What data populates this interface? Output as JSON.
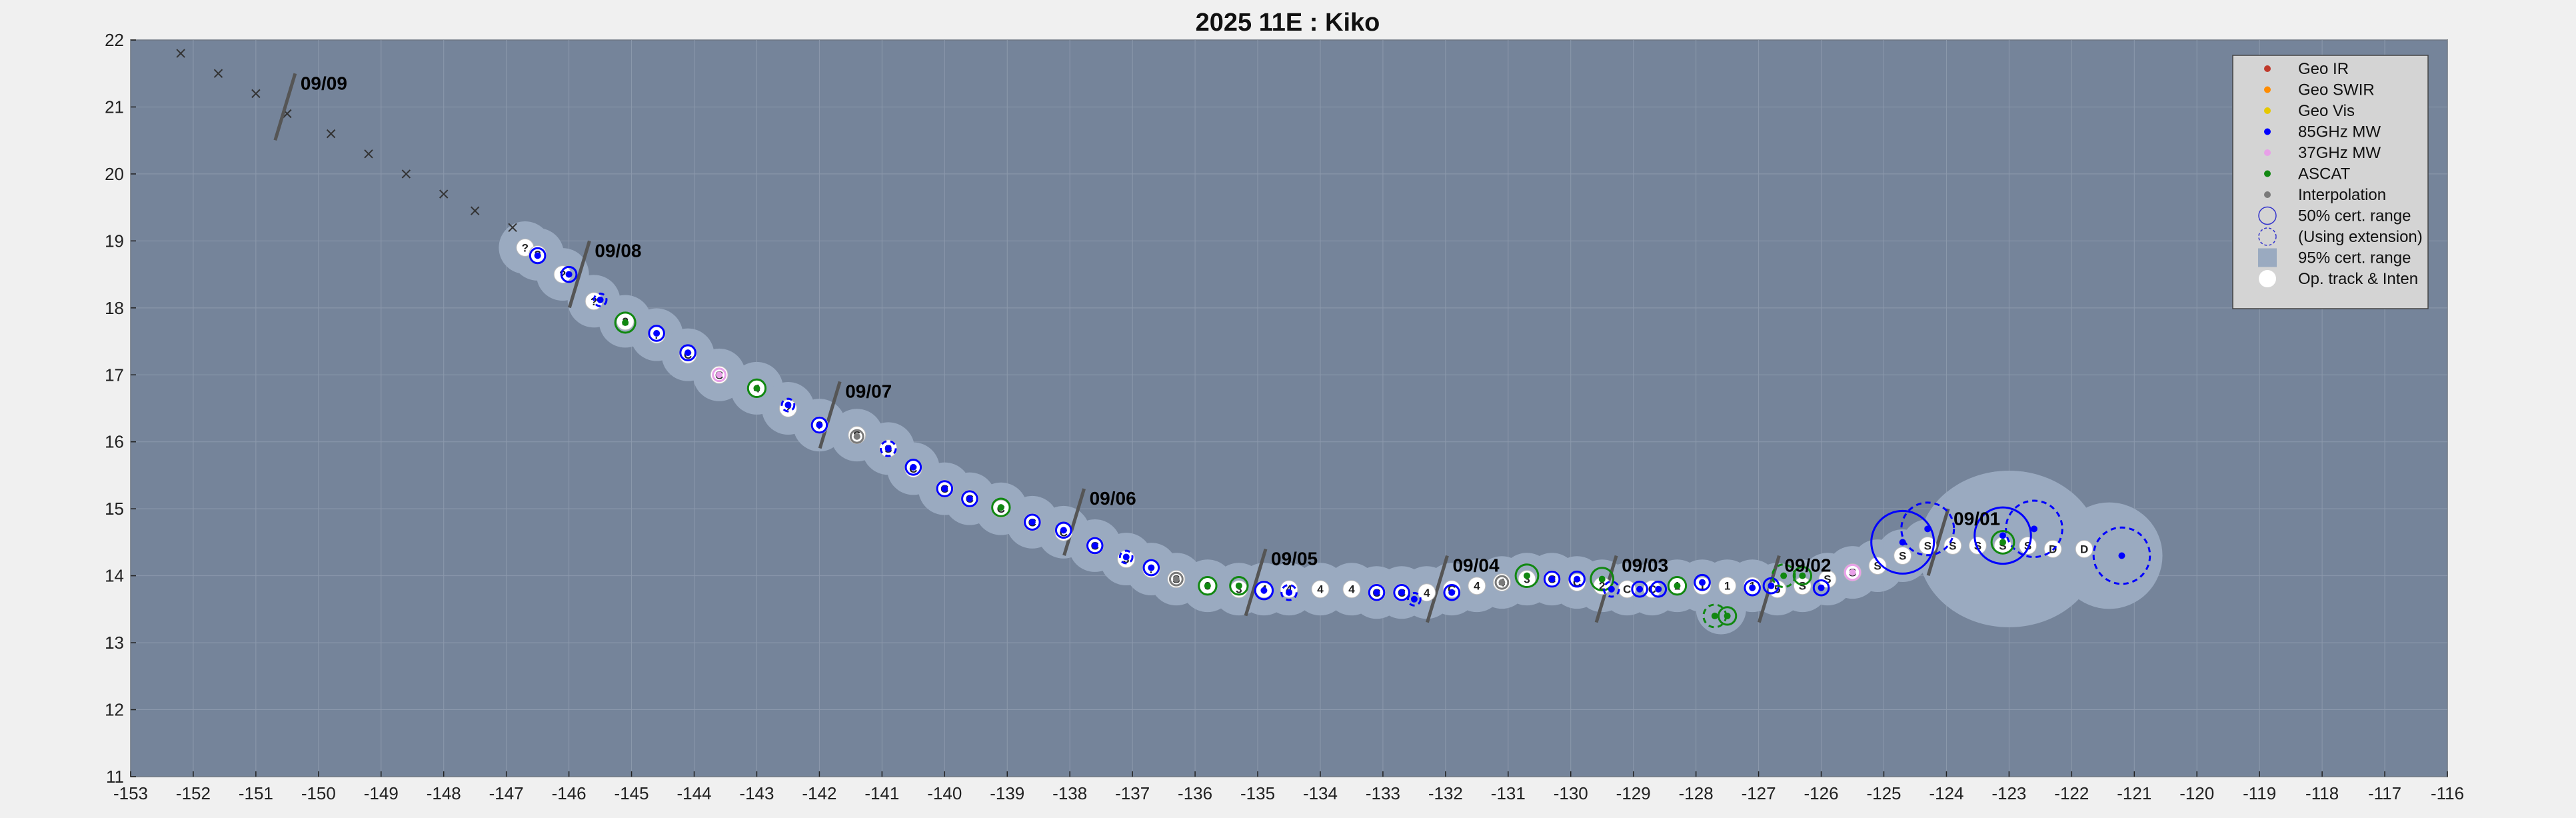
{
  "chart_data": {
    "type": "scatter",
    "title": "2025  11E :  Kiko",
    "xlim": [
      -153,
      -116
    ],
    "ylim": [
      11,
      22
    ],
    "grid": true,
    "legend_position": "top-right",
    "xticks": [
      "-153",
      "-152",
      "-151",
      "-150",
      "-149",
      "-148",
      "-147",
      "-146",
      "-145",
      "-144",
      "-143",
      "-142",
      "-141",
      "-140",
      "-139",
      "-138",
      "-137",
      "-136",
      "-135",
      "-134",
      "-133",
      "-132",
      "-131",
      "-130",
      "-129",
      "-128",
      "-127",
      "-126",
      "-125",
      "-124",
      "-123",
      "-122",
      "-121",
      "-120",
      "-119",
      "-118",
      "-117",
      "-116"
    ],
    "yticks": [
      "11",
      "12",
      "13",
      "14",
      "15",
      "16",
      "17",
      "18",
      "19",
      "20",
      "21",
      "22"
    ],
    "legend": [
      {
        "label": "Geo IR",
        "color": "#c0392b",
        "marker": "dot"
      },
      {
        "label": "Geo SWIR",
        "color": "#ff8c00",
        "marker": "dot"
      },
      {
        "label": "Geo Vis",
        "color": "#e6c800",
        "marker": "dot"
      },
      {
        "label": "85GHz MW",
        "color": "#0000ff",
        "marker": "dot"
      },
      {
        "label": "37GHz MW",
        "color": "#e8a0e8",
        "marker": "dot"
      },
      {
        "label": "ASCAT",
        "color": "#118811",
        "marker": "dot"
      },
      {
        "label": "Interpolation",
        "color": "#7a7a7a",
        "marker": "dot"
      },
      {
        "label": "50% cert. range",
        "color": "#3333cc",
        "marker": "circle"
      },
      {
        "label": "(Using extension)",
        "color": "#3333cc",
        "marker": "dashed-circle"
      },
      {
        "label": "95% cert. range",
        "color": "#9aaac0",
        "marker": "square"
      },
      {
        "label": "Op. track & Inten",
        "color": "#ffffff",
        "marker": "big-dot"
      }
    ],
    "date_labels": [
      {
        "text": "09/09",
        "x": -150.5,
        "y": 21.3
      },
      {
        "text": "09/08",
        "x": -145.8,
        "y": 18.8
      },
      {
        "text": "09/07",
        "x": -141.8,
        "y": 16.7
      },
      {
        "text": "09/06",
        "x": -137.9,
        "y": 15.1
      },
      {
        "text": "09/05",
        "x": -135.0,
        "y": 14.2
      },
      {
        "text": "09/04",
        "x": -132.1,
        "y": 14.1
      },
      {
        "text": "09/03",
        "x": -129.4,
        "y": 14.1
      },
      {
        "text": "09/02",
        "x": -126.8,
        "y": 14.1
      },
      {
        "text": "09/01",
        "x": -124.1,
        "y": 14.8
      }
    ],
    "forecast_track": [
      [
        -152.2,
        21.8
      ],
      [
        -151.6,
        21.5
      ],
      [
        -151.0,
        21.2
      ],
      [
        -150.5,
        20.9
      ],
      [
        -149.8,
        20.6
      ],
      [
        -149.2,
        20.3
      ],
      [
        -148.6,
        20.0
      ],
      [
        -148.0,
        19.7
      ],
      [
        -147.5,
        19.45
      ],
      [
        -146.9,
        19.2
      ]
    ],
    "track": [
      [
        -146.7,
        18.9,
        "?"
      ],
      [
        -146.5,
        18.8,
        "?"
      ],
      [
        -146.1,
        18.5,
        "?"
      ],
      [
        -145.6,
        18.1,
        "?"
      ],
      [
        -145.1,
        17.8,
        "2"
      ],
      [
        -144.6,
        17.6,
        "?"
      ],
      [
        -144.1,
        17.3,
        "C"
      ],
      [
        -143.6,
        17.0,
        "C"
      ],
      [
        -143.0,
        16.8,
        "4"
      ],
      [
        -142.5,
        16.5,
        "?"
      ],
      [
        -142.0,
        16.25,
        "?"
      ],
      [
        -141.4,
        16.1,
        "S"
      ],
      [
        -140.9,
        15.9,
        "S"
      ],
      [
        -140.5,
        15.6,
        "C"
      ],
      [
        -140.0,
        15.3,
        "C"
      ],
      [
        -139.6,
        15.15,
        "C"
      ],
      [
        -139.1,
        15.0,
        "C"
      ],
      [
        -138.6,
        14.8,
        "C"
      ],
      [
        -138.1,
        14.65,
        "C"
      ],
      [
        -137.6,
        14.45,
        "C"
      ],
      [
        -137.1,
        14.25,
        "3"
      ],
      [
        -136.7,
        14.1,
        "?"
      ],
      [
        -136.3,
        13.95,
        "S"
      ],
      [
        -135.8,
        13.85,
        "3"
      ],
      [
        -135.3,
        13.8,
        "3"
      ],
      [
        -134.9,
        13.8,
        "4"
      ],
      [
        -134.5,
        13.8,
        "4"
      ],
      [
        -134.0,
        13.8,
        "4"
      ],
      [
        -133.5,
        13.8,
        "4"
      ],
      [
        -133.1,
        13.75,
        "C"
      ],
      [
        -132.7,
        13.75,
        "C"
      ],
      [
        -132.3,
        13.75,
        "4"
      ],
      [
        -131.9,
        13.8,
        "C"
      ],
      [
        -131.5,
        13.85,
        "4"
      ],
      [
        -131.1,
        13.9,
        "4"
      ],
      [
        -130.7,
        13.95,
        "3"
      ],
      [
        -130.3,
        13.95,
        "C"
      ],
      [
        -129.9,
        13.9,
        "C"
      ],
      [
        -129.5,
        13.85,
        "2"
      ],
      [
        -129.1,
        13.8,
        "C"
      ],
      [
        -128.7,
        13.8,
        "C"
      ],
      [
        -128.3,
        13.85,
        "1"
      ],
      [
        -127.9,
        13.85,
        "1"
      ],
      [
        -127.5,
        13.85,
        "1"
      ],
      [
        -127.1,
        13.85,
        "1"
      ],
      [
        -126.7,
        13.8,
        "5"
      ],
      [
        -126.3,
        13.85,
        "S"
      ],
      [
        -125.9,
        13.95,
        "S"
      ],
      [
        -125.5,
        14.05,
        "S"
      ],
      [
        -125.1,
        14.15,
        "S"
      ],
      [
        -124.7,
        14.3,
        "S"
      ],
      [
        -124.3,
        14.45,
        "S"
      ],
      [
        -123.9,
        14.45,
        "S"
      ],
      [
        -123.5,
        14.45,
        "S"
      ],
      [
        -123.1,
        14.45,
        "S"
      ],
      [
        -122.7,
        14.45,
        "S"
      ],
      [
        -122.3,
        14.4,
        "D"
      ],
      [
        -121.8,
        14.4,
        "D"
      ]
    ],
    "fixes": [
      {
        "x": -146.5,
        "y": 18.78,
        "c": "#0000ff",
        "r": 0.12
      },
      {
        "x": -146.0,
        "y": 18.5,
        "c": "#0000ff",
        "r": 0.12
      },
      {
        "x": -145.5,
        "y": 18.12,
        "c": "#0000ff",
        "r": 0.1,
        "d": true
      },
      {
        "x": -145.1,
        "y": 17.78,
        "c": "#118811",
        "r": 0.16
      },
      {
        "x": -144.6,
        "y": 17.62,
        "c": "#0000ff",
        "r": 0.12
      },
      {
        "x": -144.1,
        "y": 17.33,
        "c": "#0000ff",
        "r": 0.12
      },
      {
        "x": -143.6,
        "y": 17.0,
        "c": "#e8a0e8",
        "r": 0.1
      },
      {
        "x": -143.0,
        "y": 16.8,
        "c": "#118811",
        "r": 0.14
      },
      {
        "x": -142.5,
        "y": 16.55,
        "c": "#0000ff",
        "r": 0.1,
        "d": true
      },
      {
        "x": -142.0,
        "y": 16.25,
        "c": "#0000ff",
        "r": 0.12
      },
      {
        "x": -141.4,
        "y": 16.08,
        "c": "#7a7a7a",
        "r": 0.1
      },
      {
        "x": -140.9,
        "y": 15.9,
        "c": "#0000ff",
        "r": 0.12,
        "d": true
      },
      {
        "x": -140.5,
        "y": 15.62,
        "c": "#0000ff",
        "r": 0.12
      },
      {
        "x": -140.0,
        "y": 15.3,
        "c": "#0000ff",
        "r": 0.12
      },
      {
        "x": -139.6,
        "y": 15.15,
        "c": "#0000ff",
        "r": 0.12
      },
      {
        "x": -139.1,
        "y": 15.02,
        "c": "#118811",
        "r": 0.14
      },
      {
        "x": -138.6,
        "y": 14.8,
        "c": "#0000ff",
        "r": 0.12
      },
      {
        "x": -138.1,
        "y": 14.68,
        "c": "#0000ff",
        "r": 0.12
      },
      {
        "x": -137.6,
        "y": 14.45,
        "c": "#0000ff",
        "r": 0.12
      },
      {
        "x": -137.1,
        "y": 14.28,
        "c": "#0000ff",
        "r": 0.1,
        "d": true
      },
      {
        "x": -136.7,
        "y": 14.12,
        "c": "#0000ff",
        "r": 0.12
      },
      {
        "x": -136.3,
        "y": 13.95,
        "c": "#7a7a7a",
        "r": 0.1
      },
      {
        "x": -135.8,
        "y": 13.85,
        "c": "#118811",
        "r": 0.14
      },
      {
        "x": -135.3,
        "y": 13.85,
        "c": "#118811",
        "r": 0.14
      },
      {
        "x": -134.9,
        "y": 13.78,
        "c": "#0000ff",
        "r": 0.14
      },
      {
        "x": -134.5,
        "y": 13.75,
        "c": "#0000ff",
        "r": 0.12,
        "d": true
      },
      {
        "x": -133.1,
        "y": 13.75,
        "c": "#0000ff",
        "r": 0.12
      },
      {
        "x": -132.7,
        "y": 13.75,
        "c": "#0000ff",
        "r": 0.12
      },
      {
        "x": -132.5,
        "y": 13.65,
        "c": "#0000ff",
        "r": 0.1,
        "d": true
      },
      {
        "x": -131.9,
        "y": 13.75,
        "c": "#0000ff",
        "r": 0.12
      },
      {
        "x": -131.1,
        "y": 13.9,
        "c": "#7a7a7a",
        "r": 0.1
      },
      {
        "x": -130.7,
        "y": 14.0,
        "c": "#118811",
        "r": 0.18
      },
      {
        "x": -130.3,
        "y": 13.95,
        "c": "#0000ff",
        "r": 0.12
      },
      {
        "x": -129.9,
        "y": 13.95,
        "c": "#0000ff",
        "r": 0.12
      },
      {
        "x": -129.5,
        "y": 13.95,
        "c": "#118811",
        "r": 0.18
      },
      {
        "x": -129.35,
        "y": 13.8,
        "c": "#0000ff",
        "r": 0.12,
        "d": true
      },
      {
        "x": -128.9,
        "y": 13.8,
        "c": "#0000ff",
        "r": 0.12
      },
      {
        "x": -128.6,
        "y": 13.8,
        "c": "#0000ff",
        "r": 0.12
      },
      {
        "x": -128.3,
        "y": 13.85,
        "c": "#118811",
        "r": 0.14
      },
      {
        "x": -127.9,
        "y": 13.9,
        "c": "#0000ff",
        "r": 0.12
      },
      {
        "x": -127.7,
        "y": 13.4,
        "c": "#118811",
        "r": 0.18,
        "d": true
      },
      {
        "x": -127.5,
        "y": 13.4,
        "c": "#118811",
        "r": 0.14
      },
      {
        "x": -127.1,
        "y": 13.82,
        "c": "#0000ff",
        "r": 0.12
      },
      {
        "x": -126.8,
        "y": 13.85,
        "c": "#0000ff",
        "r": 0.12
      },
      {
        "x": -126.6,
        "y": 14.0,
        "c": "#118811",
        "r": 0.18,
        "d": true
      },
      {
        "x": -126.3,
        "y": 14.0,
        "c": "#118811",
        "r": 0.14
      },
      {
        "x": -126.0,
        "y": 13.82,
        "c": "#0000ff",
        "r": 0.12
      },
      {
        "x": -125.5,
        "y": 14.05,
        "c": "#e8a0e8",
        "r": 0.12
      },
      {
        "x": -124.7,
        "y": 14.5,
        "c": "#0000ff",
        "r": 0.5
      },
      {
        "x": -124.3,
        "y": 14.7,
        "c": "#0000ff",
        "r": 0.42,
        "d": true
      },
      {
        "x": -123.1,
        "y": 14.6,
        "c": "#0000ff",
        "r": 0.45
      },
      {
        "x": -122.6,
        "y": 14.7,
        "c": "#0000ff",
        "r": 0.45,
        "d": true
      },
      {
        "x": -123.1,
        "y": 14.5,
        "c": "#118811",
        "r": 0.18
      },
      {
        "x": -121.2,
        "y": 14.3,
        "c": "#0000ff",
        "r": 0.45,
        "d": true
      }
    ]
  }
}
